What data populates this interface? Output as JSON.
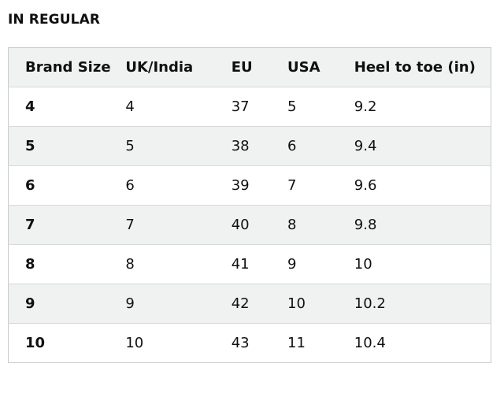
{
  "section_title": "IN REGULAR",
  "table": {
    "headers": [
      "Brand Size",
      "UK/India",
      "EU",
      "USA",
      "Heel to toe (in)"
    ],
    "rows": [
      [
        "4",
        "4",
        "37",
        "5",
        "9.2"
      ],
      [
        "5",
        "5",
        "38",
        "6",
        "9.4"
      ],
      [
        "6",
        "6",
        "39",
        "7",
        "9.6"
      ],
      [
        "7",
        "7",
        "40",
        "8",
        "9.8"
      ],
      [
        "8",
        "8",
        "41",
        "9",
        "10"
      ],
      [
        "9",
        "9",
        "42",
        "10",
        "10.2"
      ],
      [
        "10",
        "10",
        "43",
        "11",
        "10.4"
      ]
    ]
  },
  "colors": {
    "header_bg": "#f0f2f2",
    "alt_row_bg": "#f0f2f2",
    "border": "#d5d9d9",
    "text": "#0f1111"
  }
}
